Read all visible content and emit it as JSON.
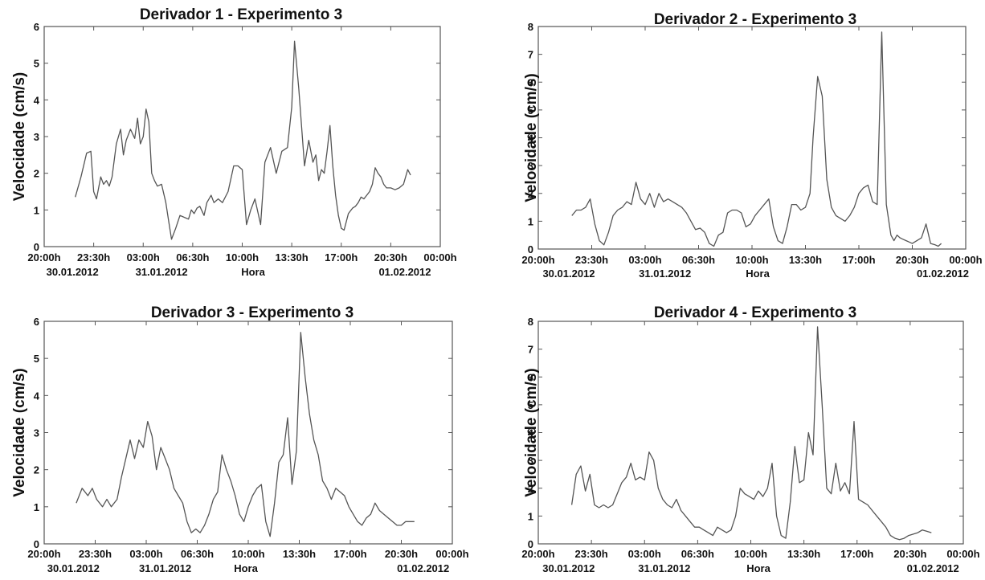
{
  "chart_data": [
    {
      "type": "line",
      "title": "Derivador 1 - Experimento 3",
      "ylabel": "Velocidade (cm/s)",
      "xlabel": "Hora",
      "ylim": [
        0,
        6
      ],
      "yticks": [
        "0",
        "1",
        "2",
        "3",
        "4",
        "5",
        "6"
      ],
      "xlim": [
        20,
        48
      ],
      "xticks": [
        "20:00h",
        "23:30h",
        "03:00h",
        "06:30h",
        "10:00h",
        "13:30h",
        "17:00h",
        "20:30h",
        "00:00h"
      ],
      "date_labels": [
        {
          "text": "30.01.2012",
          "at": 22
        },
        {
          "text": "31.01.2012",
          "at": 28.3
        },
        {
          "text": "01.02.2012",
          "at": 45.5
        }
      ],
      "x": [
        22.2,
        22.6,
        23.0,
        23.3,
        23.5,
        23.7,
        24.0,
        24.2,
        24.4,
        24.6,
        24.8,
        25.1,
        25.4,
        25.6,
        25.8,
        26.1,
        26.4,
        26.6,
        26.8,
        27.0,
        27.2,
        27.4,
        27.6,
        27.8,
        28.0,
        28.3,
        28.6,
        28.8,
        29.0,
        29.3,
        29.6,
        29.9,
        30.2,
        30.4,
        30.6,
        30.8,
        31.0,
        31.3,
        31.5,
        31.8,
        32.0,
        32.3,
        32.6,
        33.0,
        33.4,
        33.7,
        34.0,
        34.3,
        34.6,
        34.9,
        35.3,
        35.6,
        36.0,
        36.4,
        36.8,
        37.2,
        37.5,
        37.7,
        38.0,
        38.4,
        38.7,
        39.0,
        39.2,
        39.4,
        39.6,
        39.8,
        40.0,
        40.2,
        40.4,
        40.6,
        40.8,
        41.0,
        41.2,
        41.5,
        41.8,
        42.0,
        42.2,
        42.4,
        42.6,
        42.8,
        43.0,
        43.2,
        43.4,
        43.6,
        43.8,
        44.0,
        44.2,
        44.5,
        44.8,
        45.1,
        45.4,
        45.7,
        45.9
      ],
      "values": [
        1.35,
        1.9,
        2.55,
        2.6,
        1.5,
        1.3,
        1.9,
        1.7,
        1.8,
        1.65,
        1.9,
        2.8,
        3.2,
        2.5,
        2.9,
        3.2,
        2.95,
        3.5,
        2.8,
        3.0,
        3.75,
        3.4,
        2.0,
        1.8,
        1.65,
        1.7,
        1.2,
        0.7,
        0.2,
        0.5,
        0.85,
        0.8,
        0.75,
        1.0,
        0.9,
        1.05,
        1.1,
        0.85,
        1.2,
        1.4,
        1.2,
        1.3,
        1.2,
        1.5,
        2.2,
        2.2,
        2.1,
        0.6,
        1.0,
        1.3,
        0.6,
        2.3,
        2.7,
        2.0,
        2.6,
        2.7,
        3.8,
        5.6,
        4.3,
        2.2,
        2.9,
        2.3,
        2.5,
        1.8,
        2.1,
        2.0,
        2.6,
        3.3,
        2.2,
        1.4,
        0.85,
        0.5,
        0.45,
        0.9,
        1.05,
        1.1,
        1.2,
        1.35,
        1.3,
        1.4,
        1.5,
        1.7,
        2.15,
        2.0,
        1.9,
        1.7,
        1.6,
        1.6,
        1.55,
        1.6,
        1.7,
        2.1,
        1.95
      ]
    },
    {
      "type": "line",
      "title": "Derivador 2 - Experimento 3",
      "ylabel": "Velocidade (cm/s)",
      "xlabel": "Hora",
      "ylim": [
        0,
        8
      ],
      "yticks": [
        "0",
        "1",
        "2",
        "3",
        "4",
        "5",
        "6",
        "7",
        "8"
      ],
      "xlim": [
        20,
        48
      ],
      "xticks": [
        "20:00h",
        "23:30h",
        "03:00h",
        "06:30h",
        "10:00h",
        "13:30h",
        "17:00h",
        "20:30h",
        "00:00h"
      ],
      "date_labels": [
        {
          "text": "30.01.2012",
          "at": 22
        },
        {
          "text": "31.01.2012",
          "at": 28.3
        },
        {
          "text": "01.02.2012",
          "at": 46.5
        }
      ],
      "x": [
        22.2,
        22.5,
        22.8,
        23.1,
        23.4,
        23.7,
        24.0,
        24.3,
        24.6,
        24.9,
        25.2,
        25.5,
        25.8,
        26.1,
        26.4,
        26.7,
        27.0,
        27.3,
        27.6,
        27.9,
        28.2,
        28.5,
        28.8,
        29.1,
        29.4,
        29.7,
        30.0,
        30.3,
        30.6,
        30.9,
        31.2,
        31.5,
        31.8,
        32.1,
        32.4,
        32.7,
        33.0,
        33.3,
        33.6,
        33.9,
        34.2,
        34.5,
        34.8,
        35.1,
        35.4,
        35.7,
        36.0,
        36.3,
        36.6,
        36.9,
        37.2,
        37.5,
        37.8,
        38.0,
        38.3,
        38.6,
        38.9,
        39.2,
        39.5,
        39.8,
        40.1,
        40.4,
        40.7,
        41.0,
        41.3,
        41.6,
        41.9,
        42.2,
        42.5,
        42.8,
        43.1,
        43.3,
        43.5,
        43.7,
        43.9,
        44.1,
        44.3,
        44.5,
        44.8,
        45.1,
        45.4,
        45.7,
        46.0,
        46.2,
        46.4
      ],
      "values": [
        1.2,
        1.4,
        1.4,
        1.5,
        1.8,
        0.9,
        0.3,
        0.15,
        0.6,
        1.2,
        1.4,
        1.5,
        1.7,
        1.6,
        2.4,
        1.8,
        1.6,
        2.0,
        1.5,
        2.0,
        1.7,
        1.8,
        1.7,
        1.6,
        1.5,
        1.3,
        1.0,
        0.7,
        0.75,
        0.6,
        0.2,
        0.1,
        0.5,
        0.6,
        1.3,
        1.4,
        1.4,
        1.3,
        0.8,
        0.9,
        1.2,
        1.4,
        1.6,
        1.8,
        0.8,
        0.3,
        0.2,
        0.8,
        1.6,
        1.6,
        1.4,
        1.5,
        2.0,
        4.0,
        6.2,
        5.5,
        2.5,
        1.5,
        1.2,
        1.1,
        1.0,
        1.2,
        1.5,
        2.0,
        2.2,
        2.3,
        1.7,
        1.6,
        7.8,
        1.6,
        0.5,
        0.3,
        0.5,
        0.4,
        0.35,
        0.3,
        0.25,
        0.2,
        0.3,
        0.4,
        0.9,
        0.2,
        0.15,
        0.1,
        0.2
      ]
    },
    {
      "type": "line",
      "title": "Derivador 3 - Experimento 3",
      "ylabel": "Velocidade (cm/s)",
      "xlabel": "Hora",
      "ylim": [
        0,
        6
      ],
      "yticks": [
        "0",
        "1",
        "2",
        "3",
        "4",
        "5",
        "6"
      ],
      "xlim": [
        20,
        48
      ],
      "xticks": [
        "20:00h",
        "23:30h",
        "03:00h",
        "06:30h",
        "10:00h",
        "13:30h",
        "17:00h",
        "20:30h",
        "00:00h"
      ],
      "date_labels": [
        {
          "text": "30.01.2012",
          "at": 22
        },
        {
          "text": "31.01.2012",
          "at": 28.3
        },
        {
          "text": "01.02.2012",
          "at": 46
        }
      ],
      "x": [
        22.2,
        22.6,
        23.0,
        23.3,
        23.6,
        24.0,
        24.3,
        24.6,
        25.0,
        25.3,
        25.6,
        25.9,
        26.2,
        26.5,
        26.8,
        27.1,
        27.4,
        27.7,
        28.0,
        28.3,
        28.6,
        28.9,
        29.2,
        29.5,
        29.8,
        30.1,
        30.4,
        30.7,
        31.0,
        31.3,
        31.6,
        31.9,
        32.2,
        32.5,
        32.8,
        33.1,
        33.4,
        33.7,
        34.0,
        34.3,
        34.6,
        34.9,
        35.2,
        35.5,
        35.8,
        36.1,
        36.4,
        36.7,
        37.0,
        37.3,
        37.6,
        37.9,
        38.2,
        38.5,
        38.8,
        39.1,
        39.4,
        39.7,
        40.0,
        40.3,
        40.6,
        40.9,
        41.2,
        41.5,
        41.8,
        42.1,
        42.4,
        42.7,
        43.0,
        43.3,
        43.6,
        43.9,
        44.2,
        44.5,
        44.8,
        45.1,
        45.4
      ],
      "values": [
        1.1,
        1.5,
        1.3,
        1.5,
        1.2,
        1.0,
        1.2,
        1.0,
        1.2,
        1.8,
        2.3,
        2.8,
        2.3,
        2.8,
        2.6,
        3.3,
        2.9,
        2.0,
        2.6,
        2.3,
        2.0,
        1.5,
        1.3,
        1.1,
        0.6,
        0.3,
        0.4,
        0.3,
        0.5,
        0.8,
        1.2,
        1.4,
        2.4,
        2.0,
        1.7,
        1.3,
        0.8,
        0.6,
        1.0,
        1.3,
        1.5,
        1.6,
        0.6,
        0.2,
        1.1,
        2.2,
        2.4,
        3.4,
        1.6,
        2.5,
        5.7,
        4.5,
        3.5,
        2.8,
        2.4,
        1.7,
        1.5,
        1.2,
        1.5,
        1.4,
        1.3,
        1.0,
        0.8,
        0.6,
        0.5,
        0.7,
        0.8,
        1.1,
        0.9,
        0.8,
        0.7,
        0.6,
        0.5,
        0.5,
        0.6,
        0.6,
        0.6
      ]
    },
    {
      "type": "line",
      "title": "Derivador 4 - Experimento 3",
      "ylabel": "Velocidade (cm/s)",
      "xlabel": "Hora",
      "ylim": [
        0,
        8
      ],
      "yticks": [
        "0",
        "1",
        "2",
        "3",
        "4",
        "5",
        "6",
        "7",
        "8"
      ],
      "xlim": [
        20,
        48
      ],
      "xticks": [
        "20:00h",
        "23:30h",
        "03:00h",
        "06:30h",
        "10:00h",
        "13:30h",
        "17:00h",
        "20:30h",
        "00:00h"
      ],
      "date_labels": [
        {
          "text": "30.01.2012",
          "at": 22
        },
        {
          "text": "31.01.2012",
          "at": 28.3
        },
        {
          "text": "01.02.2012",
          "at": 46
        }
      ],
      "x": [
        22.2,
        22.5,
        22.8,
        23.1,
        23.4,
        23.7,
        24.0,
        24.3,
        24.6,
        24.9,
        25.2,
        25.5,
        25.8,
        26.1,
        26.4,
        26.7,
        27.0,
        27.3,
        27.6,
        27.9,
        28.2,
        28.5,
        28.8,
        29.1,
        29.4,
        29.7,
        30.0,
        30.3,
        30.6,
        30.9,
        31.2,
        31.5,
        31.8,
        32.1,
        32.4,
        32.7,
        33.0,
        33.3,
        33.6,
        33.9,
        34.2,
        34.5,
        34.8,
        35.1,
        35.4,
        35.7,
        36.0,
        36.3,
        36.6,
        36.9,
        37.2,
        37.5,
        37.8,
        38.1,
        38.4,
        38.7,
        39.0,
        39.3,
        39.6,
        39.9,
        40.2,
        40.5,
        40.8,
        41.1,
        41.4,
        41.7,
        42.0,
        42.3,
        42.6,
        42.9,
        43.2,
        43.5,
        43.8,
        44.1,
        44.4,
        44.7,
        45.0,
        45.3,
        45.6,
        45.9
      ],
      "values": [
        1.4,
        2.5,
        2.8,
        1.9,
        2.5,
        1.4,
        1.3,
        1.4,
        1.3,
        1.4,
        1.8,
        2.2,
        2.4,
        2.9,
        2.3,
        2.4,
        2.3,
        3.3,
        3.0,
        2.0,
        1.6,
        1.4,
        1.3,
        1.6,
        1.2,
        1.0,
        0.8,
        0.6,
        0.6,
        0.5,
        0.4,
        0.3,
        0.6,
        0.5,
        0.4,
        0.5,
        1.0,
        2.0,
        1.8,
        1.7,
        1.6,
        1.9,
        1.7,
        2.0,
        2.9,
        1.0,
        0.3,
        0.2,
        1.5,
        3.5,
        2.2,
        2.3,
        4.0,
        3.2,
        7.8,
        5.0,
        2.0,
        1.8,
        2.9,
        1.9,
        2.2,
        1.8,
        4.4,
        1.6,
        1.5,
        1.4,
        1.2,
        1.0,
        0.8,
        0.6,
        0.3,
        0.2,
        0.15,
        0.2,
        0.3,
        0.35,
        0.4,
        0.5,
        0.45,
        0.4
      ]
    }
  ]
}
